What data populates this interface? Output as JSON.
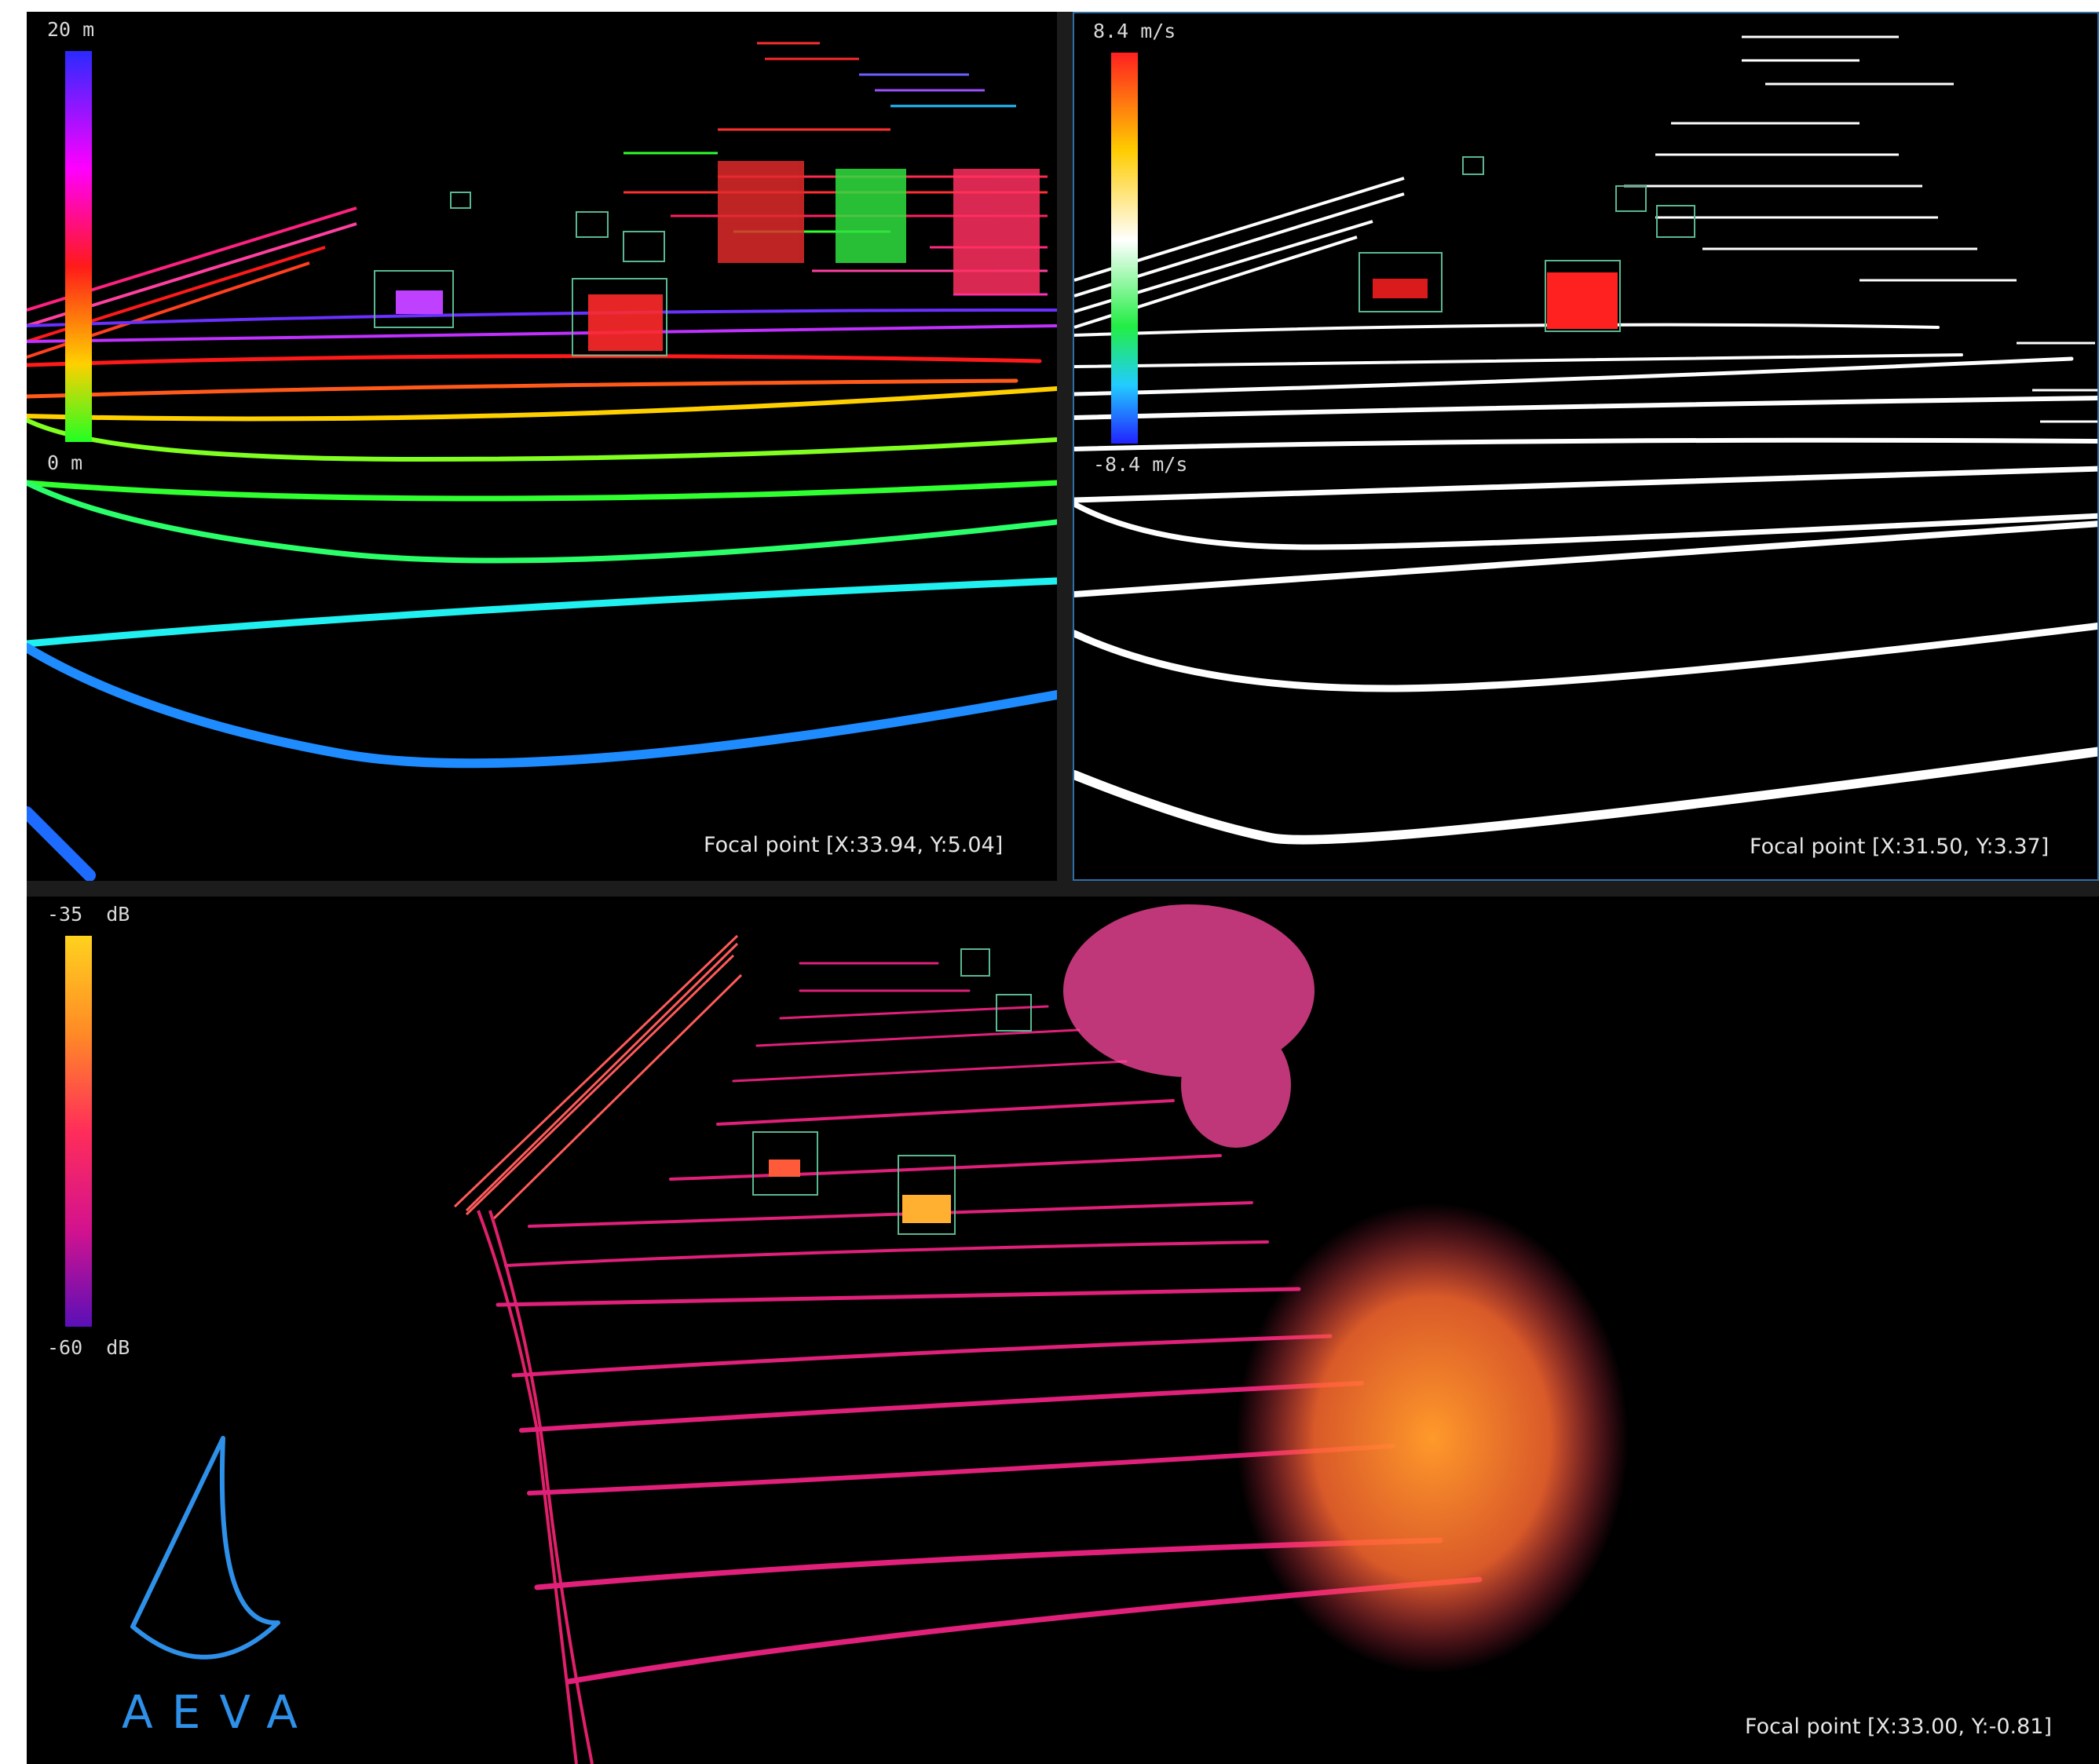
{
  "views": {
    "range": {
      "legend_max": "20 m",
      "legend_min": "0 m",
      "focal_point": "Focal point [X:33.94, Y:5.04]",
      "colorbar_colors": [
        "#2a2aff",
        "#ff00ff",
        "#ff1a1a",
        "#ffd000",
        "#22ff22"
      ]
    },
    "velocity": {
      "legend_max": "8.4 m/s",
      "legend_min": "-8.4 m/s",
      "focal_point": "Focal point [X:31.50, Y:3.37]",
      "colorbar_colors": [
        "#ff2020",
        "#ffcc00",
        "#ffffff",
        "#22ee44",
        "#22ccff",
        "#2222ff"
      ]
    },
    "reflectivity": {
      "legend_max": "-35  dB",
      "legend_min": "-60  dB",
      "focal_point": "Focal point [X:33.00, Y:-0.81]",
      "colorbar_colors": [
        "#ffd21e",
        "#ff8a26",
        "#ff2d5a",
        "#d4128e",
        "#5a10b8"
      ]
    }
  },
  "logo": {
    "text": "AEVA",
    "color": "#2e90e8"
  }
}
